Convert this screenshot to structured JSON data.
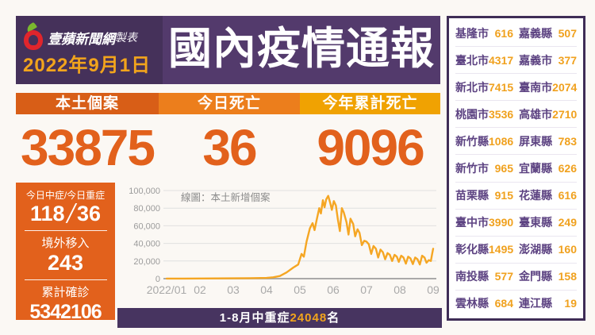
{
  "header": {
    "brand": "壹蘋新聞網",
    "brand_suffix": "製表",
    "date": "2022年9月1日",
    "title": "國內疫情通報"
  },
  "colors": {
    "purple_dark": "#45315a",
    "purple_title": "#533a6c",
    "orange_dark": "#d85e17",
    "orange_mid": "#ec7e1c",
    "amber": "#f0a202",
    "number_orange": "#e2611c",
    "value_amber": "#f0a11e",
    "line_orange": "#f5a623"
  },
  "stats": [
    {
      "label": "本土個案",
      "value": "33875",
      "bar_color": "#d85e17"
    },
    {
      "label": "今日死亡",
      "value": "36",
      "bar_color": "#ec7e1c"
    },
    {
      "label": "今年累計死亡",
      "value": "9096",
      "bar_color": "#f0a202"
    }
  ],
  "left_panel": {
    "items": [
      {
        "label": "今日中症/今日重症",
        "value": "118",
        "value2": "36"
      },
      {
        "label": "境外移入",
        "value": "243"
      },
      {
        "label": "累計確診",
        "value": "5342106"
      }
    ]
  },
  "chart_data": {
    "type": "line",
    "title": "線圖：本土新增個案",
    "legend_position": "top-left",
    "line_color": "#f5a623",
    "grid": true,
    "ylim": [
      0,
      100000
    ],
    "y_tick_labels": [
      "100,000",
      "80,000",
      "60,000",
      "40,000",
      "20,000",
      "0"
    ],
    "x_tick_labels": [
      "2022/01",
      "02",
      "03",
      "04",
      "05",
      "06",
      "07",
      "08",
      "09"
    ],
    "x_unit": "month_index_from_jan_2022",
    "points": [
      [
        0,
        100
      ],
      [
        0.5,
        130
      ],
      [
        1,
        180
      ],
      [
        1.5,
        250
      ],
      [
        2,
        350
      ],
      [
        2.5,
        500
      ],
      [
        3,
        800
      ],
      [
        3.2,
        1500
      ],
      [
        3.4,
        3000
      ],
      [
        3.6,
        7000
      ],
      [
        3.8,
        12500
      ],
      [
        3.95,
        16000
      ],
      [
        4.05,
        28000
      ],
      [
        4.12,
        25000
      ],
      [
        4.2,
        42000
      ],
      [
        4.3,
        57000
      ],
      [
        4.38,
        63000
      ],
      [
        4.44,
        55000
      ],
      [
        4.5,
        66000
      ],
      [
        4.58,
        80000
      ],
      [
        4.63,
        74000
      ],
      [
        4.69,
        89000
      ],
      [
        4.74,
        81000
      ],
      [
        4.79,
        90000
      ],
      [
        4.85,
        94000
      ],
      [
        4.91,
        86000
      ],
      [
        4.96,
        78000
      ],
      [
        5.02,
        88000
      ],
      [
        5.08,
        83000
      ],
      [
        5.14,
        67000
      ],
      [
        5.2,
        54000
      ],
      [
        5.26,
        80000
      ],
      [
        5.32,
        75000
      ],
      [
        5.4,
        64000
      ],
      [
        5.46,
        50000
      ],
      [
        5.52,
        68000
      ],
      [
        5.6,
        62000
      ],
      [
        5.66,
        48000
      ],
      [
        5.73,
        56000
      ],
      [
        5.79,
        52000
      ],
      [
        5.86,
        38000
      ],
      [
        5.93,
        43000
      ],
      [
        6.0,
        42000
      ],
      [
        6.07,
        39000
      ],
      [
        6.14,
        28000
      ],
      [
        6.21,
        37000
      ],
      [
        6.28,
        34000
      ],
      [
        6.35,
        24000
      ],
      [
        6.42,
        33000
      ],
      [
        6.49,
        30000
      ],
      [
        6.56,
        22000
      ],
      [
        6.63,
        29000
      ],
      [
        6.7,
        27000
      ],
      [
        6.77,
        20000
      ],
      [
        6.84,
        27000
      ],
      [
        6.91,
        25000
      ],
      [
        6.97,
        19000
      ],
      [
        7.04,
        26000
      ],
      [
        7.11,
        24000
      ],
      [
        7.18,
        17000
      ],
      [
        7.25,
        25000
      ],
      [
        7.32,
        23000
      ],
      [
        7.39,
        16500
      ],
      [
        7.46,
        24000
      ],
      [
        7.53,
        22000
      ],
      [
        7.6,
        16000
      ],
      [
        7.67,
        26000
      ],
      [
        7.74,
        24000
      ],
      [
        7.8,
        18000
      ],
      [
        7.87,
        21000
      ],
      [
        7.93,
        20000
      ],
      [
        7.97,
        28000
      ],
      [
        8.0,
        34000
      ]
    ]
  },
  "banner": {
    "prefix": "1-8月中重症",
    "highlight": "24048",
    "suffix": "名"
  },
  "region_table": {
    "rows": [
      [
        {
          "name": "基隆市",
          "value": "616"
        },
        {
          "name": "嘉義縣",
          "value": "507"
        }
      ],
      [
        {
          "name": "臺北市",
          "value": "4317"
        },
        {
          "name": "嘉義市",
          "value": "377"
        }
      ],
      [
        {
          "name": "新北市",
          "value": "7415"
        },
        {
          "name": "臺南市",
          "value": "2074"
        }
      ],
      [
        {
          "name": "桃園市",
          "value": "3536"
        },
        {
          "name": "高雄市",
          "value": "2710"
        }
      ],
      [
        {
          "name": "新竹縣",
          "value": "1086"
        },
        {
          "name": "屏東縣",
          "value": "783"
        }
      ],
      [
        {
          "name": "新竹市",
          "value": "965"
        },
        {
          "name": "宜蘭縣",
          "value": "626"
        }
      ],
      [
        {
          "name": "苗栗縣",
          "value": "915"
        },
        {
          "name": "花蓮縣",
          "value": "616"
        }
      ],
      [
        {
          "name": "臺中市",
          "value": "3990"
        },
        {
          "name": "臺東縣",
          "value": "249"
        }
      ],
      [
        {
          "name": "彰化縣",
          "value": "1495"
        },
        {
          "name": "澎湖縣",
          "value": "160"
        }
      ],
      [
        {
          "name": "南投縣",
          "value": "577"
        },
        {
          "name": "金門縣",
          "value": "158"
        }
      ],
      [
        {
          "name": "雲林縣",
          "value": "684"
        },
        {
          "name": "連江縣",
          "value": "19"
        }
      ]
    ]
  }
}
